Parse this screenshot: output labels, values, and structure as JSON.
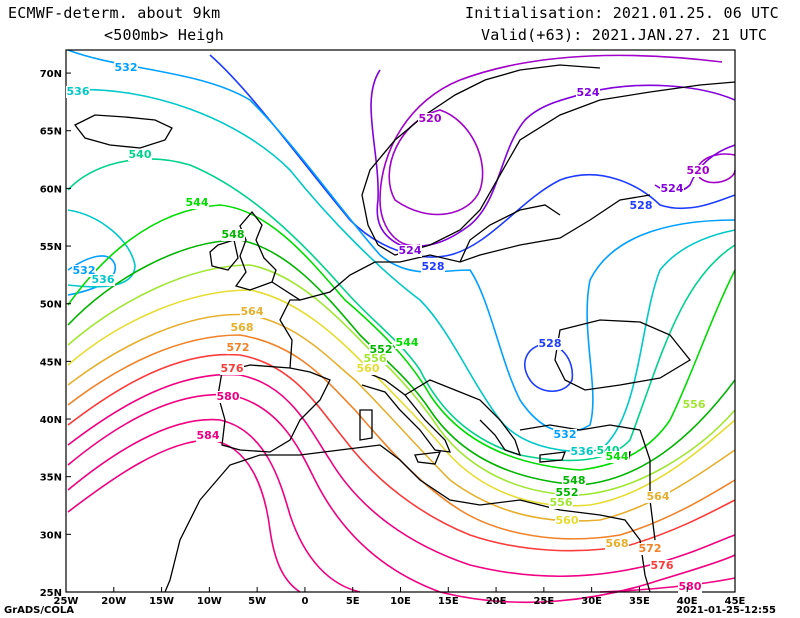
{
  "header": {
    "model": "ECMWF-determ. about 9km",
    "field": "<500mb> Heigh",
    "init": "Initialisation: 2021.01.25. 06 UTC",
    "valid": "Valid(+63): 2021.JAN.27. 21 UTC"
  },
  "footer": {
    "credit": "GrADS/COLA",
    "timestamp": "2021-01-25-12:55"
  },
  "axes": {
    "lon_labels": [
      "25W",
      "20W",
      "15W",
      "10W",
      "5W",
      "0",
      "5E",
      "10E",
      "15E",
      "20E",
      "25E",
      "30E",
      "35E",
      "40E",
      "45E"
    ],
    "lat_labels": [
      "25N",
      "30N",
      "35N",
      "40N",
      "45N",
      "50N",
      "55N",
      "60N",
      "65N",
      "70N"
    ]
  },
  "map": {
    "extent": {
      "lon": [
        -25,
        45
      ],
      "lat": [
        25,
        72
      ]
    },
    "contour_interval": 4,
    "contours": [
      {
        "value": 520,
        "color": "#a000c8"
      },
      {
        "value": 524,
        "color": "#8200dc"
      },
      {
        "value": 528,
        "color": "#1e3cff"
      },
      {
        "value": 532,
        "color": "#00a0ff"
      },
      {
        "value": 536,
        "color": "#00c8c8"
      },
      {
        "value": 540,
        "color": "#00d28c"
      },
      {
        "value": 544,
        "color": "#00dc00"
      },
      {
        "value": 548,
        "color": "#00b400"
      },
      {
        "value": 552,
        "color": "#a0e632"
      },
      {
        "value": 556,
        "color": "#e6dc32"
      },
      {
        "value": 560,
        "color": "#e6af2d"
      },
      {
        "value": 564,
        "color": "#f08228"
      },
      {
        "value": 568,
        "color": "#fa3c3c"
      },
      {
        "value": 572,
        "color": "#f00082"
      },
      {
        "value": 576,
        "color": "#f00082"
      },
      {
        "value": 580,
        "color": "#f00082"
      },
      {
        "value": 584,
        "color": "#f00082"
      }
    ],
    "labels": [
      {
        "text": "520",
        "color": "#a000c8"
      },
      {
        "text": "520",
        "color": "#a000c8"
      },
      {
        "text": "524",
        "color": "#8200dc"
      },
      {
        "text": "524",
        "color": "#8200dc"
      },
      {
        "text": "524",
        "color": "#8200dc"
      },
      {
        "text": "528",
        "color": "#1e3cff"
      },
      {
        "text": "528",
        "color": "#1e3cff"
      },
      {
        "text": "528",
        "color": "#1e3cff"
      },
      {
        "text": "532",
        "color": "#00a0ff"
      },
      {
        "text": "532",
        "color": "#00a0ff"
      },
      {
        "text": "532",
        "color": "#00a0ff"
      },
      {
        "text": "536",
        "color": "#00c8c8"
      },
      {
        "text": "536",
        "color": "#00c8c8"
      },
      {
        "text": "536",
        "color": "#00c8c8"
      },
      {
        "text": "540",
        "color": "#00d28c"
      },
      {
        "text": "540",
        "color": "#00d28c"
      },
      {
        "text": "544",
        "color": "#00dc00"
      },
      {
        "text": "544",
        "color": "#00dc00"
      },
      {
        "text": "544",
        "color": "#00dc00"
      },
      {
        "text": "548",
        "color": "#00b400"
      },
      {
        "text": "548",
        "color": "#00b400"
      },
      {
        "text": "552",
        "color": "#00b400"
      },
      {
        "text": "552",
        "color": "#00b400"
      },
      {
        "text": "556",
        "color": "#a0e632"
      },
      {
        "text": "556",
        "color": "#a0e632"
      },
      {
        "text": "556",
        "color": "#a0e632"
      },
      {
        "text": "560",
        "color": "#e6dc32"
      },
      {
        "text": "560",
        "color": "#e6dc32"
      },
      {
        "text": "564",
        "color": "#e6af2d"
      },
      {
        "text": "564",
        "color": "#e6af2d"
      },
      {
        "text": "568",
        "color": "#e6af2d"
      },
      {
        "text": "568",
        "color": "#e6af2d"
      },
      {
        "text": "572",
        "color": "#f08228"
      },
      {
        "text": "572",
        "color": "#f08228"
      },
      {
        "text": "576",
        "color": "#fa3c3c"
      },
      {
        "text": "576",
        "color": "#fa3c3c"
      },
      {
        "text": "580",
        "color": "#f00082"
      },
      {
        "text": "580",
        "color": "#f00082"
      },
      {
        "text": "584",
        "color": "#f00082"
      }
    ]
  }
}
